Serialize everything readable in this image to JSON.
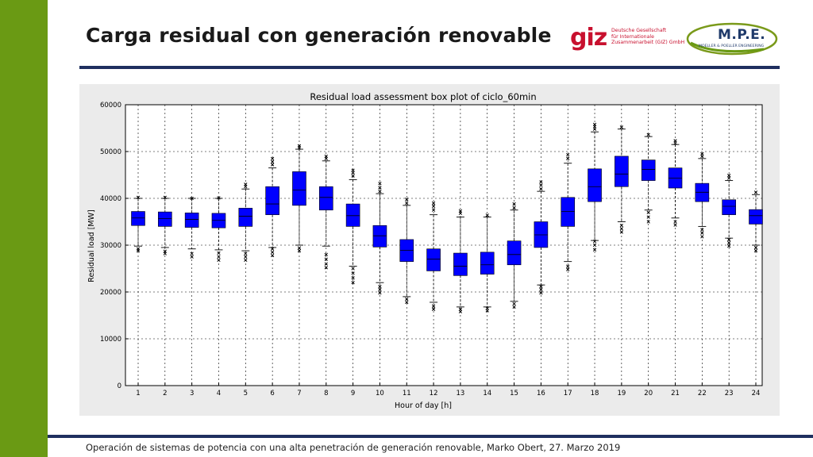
{
  "slide": {
    "title": "Carga residual con generación renovable",
    "footer": "Operación de sistemas de potencia con una alta penetración de generación renovable, Marko Obert, 27. Marzo 2019"
  },
  "logos": {
    "giz_mark": "giz",
    "giz_text": "Deutsche Gesellschaft\nfür Internationale\nZusammenarbeit (GIZ) GmbH",
    "mpe_title": "M.P.E.",
    "mpe_sub": "MOELLER & POELLER ENGINEERING"
  },
  "colors": {
    "accent_green": "#6a9a14",
    "rule_navy": "#1f2f5f",
    "box_fill": "#0000ff",
    "giz_red": "#c8102e"
  },
  "chart_data": {
    "type": "box",
    "title": "Residual load assessment box plot of ciclo_60min",
    "xlabel": "Hour of day [h]",
    "ylabel": "Residual load [MW]",
    "ylim": [
      0,
      60000
    ],
    "yticks": [
      0,
      10000,
      20000,
      30000,
      40000,
      50000,
      60000
    ],
    "grid": true,
    "categories": [
      "1",
      "2",
      "3",
      "4",
      "5",
      "6",
      "7",
      "8",
      "9",
      "10",
      "11",
      "12",
      "13",
      "14",
      "15",
      "16",
      "17",
      "18",
      "19",
      "20",
      "21",
      "22",
      "23",
      "24"
    ],
    "boxes": [
      {
        "q1": 34200,
        "median": 35800,
        "q3": 37200,
        "whisker_low": 29800,
        "whisker_high": 40000,
        "outliers": [
          28800,
          29200,
          40200
        ]
      },
      {
        "q1": 34000,
        "median": 35700,
        "q3": 37100,
        "whisker_low": 29500,
        "whisker_high": 40000,
        "outliers": [
          28200,
          28700,
          40200
        ]
      },
      {
        "q1": 33800,
        "median": 35500,
        "q3": 36900,
        "whisker_low": 29200,
        "whisker_high": 40000,
        "outliers": [
          27500,
          28200,
          40000
        ]
      },
      {
        "q1": 33700,
        "median": 35300,
        "q3": 36800,
        "whisker_low": 29000,
        "whisker_high": 40000,
        "outliers": [
          26800,
          27500,
          28300,
          40100
        ]
      },
      {
        "q1": 34000,
        "median": 36200,
        "q3": 37900,
        "whisker_low": 28800,
        "whisker_high": 42000,
        "outliers": [
          26800,
          27500,
          28200,
          42500,
          43000
        ]
      },
      {
        "q1": 36500,
        "median": 38800,
        "q3": 42500,
        "whisker_low": 29500,
        "whisker_high": 46500,
        "outliers": [
          27800,
          28500,
          29200,
          47200,
          47800,
          48500
        ]
      },
      {
        "q1": 38500,
        "median": 41800,
        "q3": 45700,
        "whisker_low": 30000,
        "whisker_high": 50500,
        "outliers": [
          28800,
          29400,
          50800,
          51200
        ]
      },
      {
        "q1": 37500,
        "median": 40200,
        "q3": 42500,
        "whisker_low": 29800,
        "whisker_high": 48000,
        "outliers": [
          25200,
          26000,
          27000,
          28000,
          48500,
          49000
        ]
      },
      {
        "q1": 34000,
        "median": 36300,
        "q3": 38800,
        "whisker_low": 25500,
        "whisker_high": 44000,
        "outliers": [
          22000,
          23000,
          24000,
          25000,
          44800,
          45500,
          46000
        ]
      },
      {
        "q1": 29600,
        "median": 32000,
        "q3": 34200,
        "whisker_low": 22000,
        "whisker_high": 41000,
        "outliers": [
          19800,
          20500,
          21200,
          41500,
          42300,
          43200
        ]
      },
      {
        "q1": 26500,
        "median": 28900,
        "q3": 31200,
        "whisker_low": 19000,
        "whisker_high": 38500,
        "outliers": [
          17800,
          18500,
          39000,
          39800
        ]
      },
      {
        "q1": 24500,
        "median": 27000,
        "q3": 29200,
        "whisker_low": 17800,
        "whisker_high": 36500,
        "outliers": [
          16300,
          17000,
          37500,
          38300,
          39000
        ]
      },
      {
        "q1": 23500,
        "median": 25500,
        "q3": 28300,
        "whisker_low": 16800,
        "whisker_high": 36000,
        "outliers": [
          15800,
          16300,
          36800,
          37300
        ]
      },
      {
        "q1": 23800,
        "median": 25800,
        "q3": 28500,
        "whisker_low": 16800,
        "whisker_high": 36000,
        "outliers": [
          16000,
          16500,
          36400
        ]
      },
      {
        "q1": 25800,
        "median": 28000,
        "q3": 30900,
        "whisker_low": 18000,
        "whisker_high": 37500,
        "outliers": [
          16800,
          17500,
          38000,
          38800
        ]
      },
      {
        "q1": 29500,
        "median": 32200,
        "q3": 35000,
        "whisker_low": 21500,
        "whisker_high": 41500,
        "outliers": [
          19800,
          20500,
          21200,
          42000,
          42800,
          43500
        ]
      },
      {
        "q1": 34000,
        "median": 37200,
        "q3": 40200,
        "whisker_low": 26500,
        "whisker_high": 47500,
        "outliers": [
          24800,
          25500,
          48500,
          49300
        ]
      },
      {
        "q1": 39300,
        "median": 42500,
        "q3": 46300,
        "whisker_low": 31000,
        "whisker_high": 54200,
        "outliers": [
          29000,
          30000,
          30800,
          54800,
          55300,
          55800
        ]
      },
      {
        "q1": 42500,
        "median": 45200,
        "q3": 49000,
        "whisker_low": 35000,
        "whisker_high": 54800,
        "outliers": [
          32800,
          33500,
          34200,
          55200
        ]
      },
      {
        "q1": 43800,
        "median": 46200,
        "q3": 48200,
        "whisker_low": 37500,
        "whisker_high": 53200,
        "outliers": [
          35000,
          36000,
          37000,
          53600
        ]
      },
      {
        "q1": 42200,
        "median": 44300,
        "q3": 46500,
        "whisker_low": 35800,
        "whisker_high": 51500,
        "outliers": [
          34300,
          35000,
          51800,
          52300
        ]
      },
      {
        "q1": 39300,
        "median": 41300,
        "q3": 43200,
        "whisker_low": 34000,
        "whisker_high": 48500,
        "outliers": [
          31800,
          32600,
          33300,
          49000,
          49500
        ]
      },
      {
        "q1": 36500,
        "median": 38300,
        "q3": 39700,
        "whisker_low": 31500,
        "whisker_high": 43800,
        "outliers": [
          29800,
          30500,
          31200,
          44300,
          44900
        ]
      },
      {
        "q1": 34500,
        "median": 36300,
        "q3": 37600,
        "whisker_low": 30000,
        "whisker_high": 40800,
        "outliers": [
          28800,
          29500,
          41300
        ]
      }
    ]
  }
}
